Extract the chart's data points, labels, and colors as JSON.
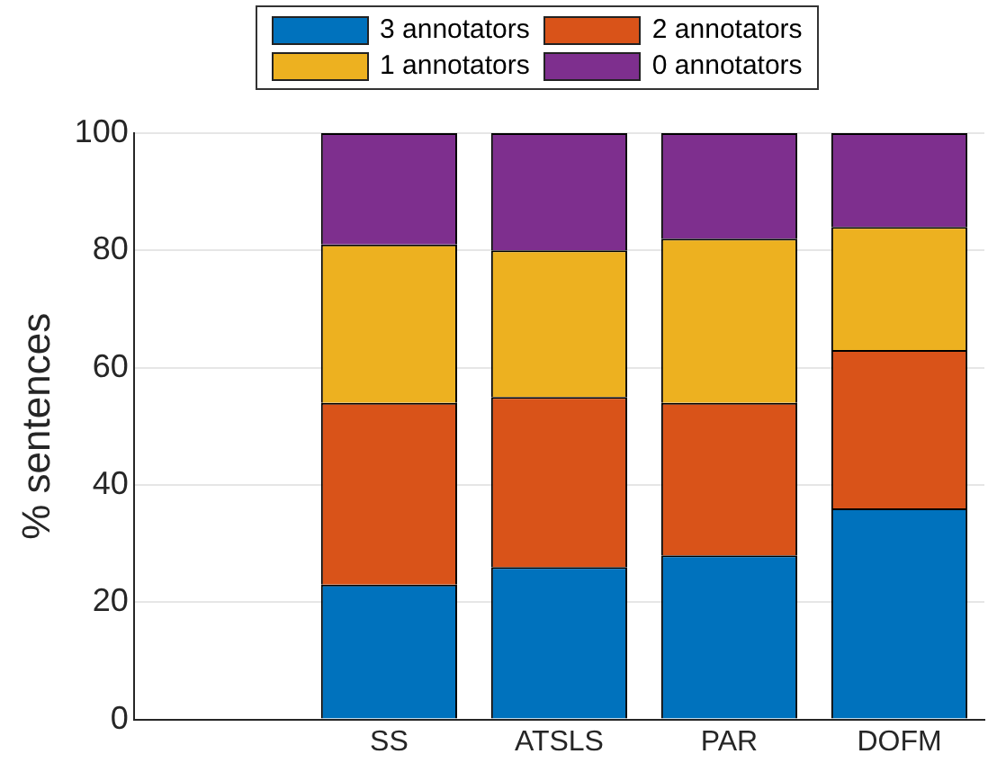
{
  "chart_data": {
    "type": "bar",
    "stacked": true,
    "ylabel": "% sentences",
    "categories": [
      null,
      "SS",
      "ATSLS",
      "PAR",
      "DOFM"
    ],
    "series": [
      {
        "name": "3 annotators",
        "color": "#0072bd",
        "values": [
          null,
          23,
          26,
          28,
          36
        ]
      },
      {
        "name": "2 annotators",
        "color": "#d95319",
        "values": [
          null,
          31,
          29,
          26,
          27
        ]
      },
      {
        "name": "1 annotators",
        "color": "#edb120",
        "values": [
          null,
          27,
          25,
          28,
          21
        ]
      },
      {
        "name": "0 annotators",
        "color": "#7e2f8e",
        "values": [
          null,
          19,
          20,
          18,
          16
        ]
      }
    ],
    "ylim": [
      0,
      100
    ],
    "yticks": [
      0,
      20,
      40,
      60,
      80,
      100
    ],
    "grid": "y",
    "legend": "top"
  }
}
